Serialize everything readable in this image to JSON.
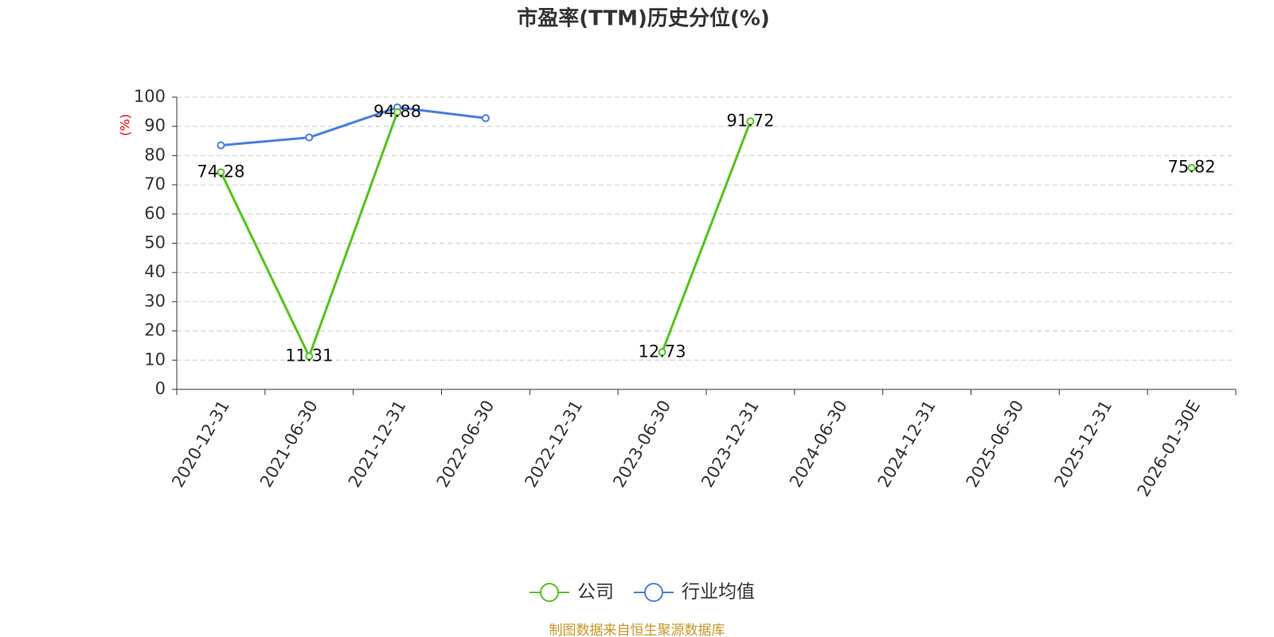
{
  "chart_data": {
    "type": "line",
    "title": "市盈率(TTM)历史分位(%)",
    "y_label": "(%)",
    "categories": [
      "2020-12-31",
      "2021-06-30",
      "2021-12-31",
      "2022-06-30",
      "2022-12-31",
      "2023-06-30",
      "2023-12-31",
      "2024-06-30",
      "2024-12-31",
      "2025-06-30",
      "2025-12-31",
      "2026-01-30E"
    ],
    "series": [
      {
        "name": "公司",
        "color": "#52c41a",
        "show_labels": true,
        "values": [
          74.28,
          11.31,
          94.88,
          null,
          null,
          12.73,
          91.72,
          null,
          null,
          null,
          null,
          75.82
        ]
      },
      {
        "name": "行业均值",
        "color": "#4a7ee0",
        "show_labels": false,
        "values": [
          83.5,
          86.2,
          96.5,
          92.8,
          null,
          null,
          null,
          null,
          null,
          null,
          null,
          null
        ]
      }
    ],
    "ylim": [
      0,
      100
    ],
    "yticks": [
      0,
      10,
      20,
      30,
      40,
      50,
      60,
      70,
      80,
      90,
      100
    ],
    "grid": true,
    "legend": "bottom",
    "source": "制图数据来自恒生聚源数据库"
  }
}
